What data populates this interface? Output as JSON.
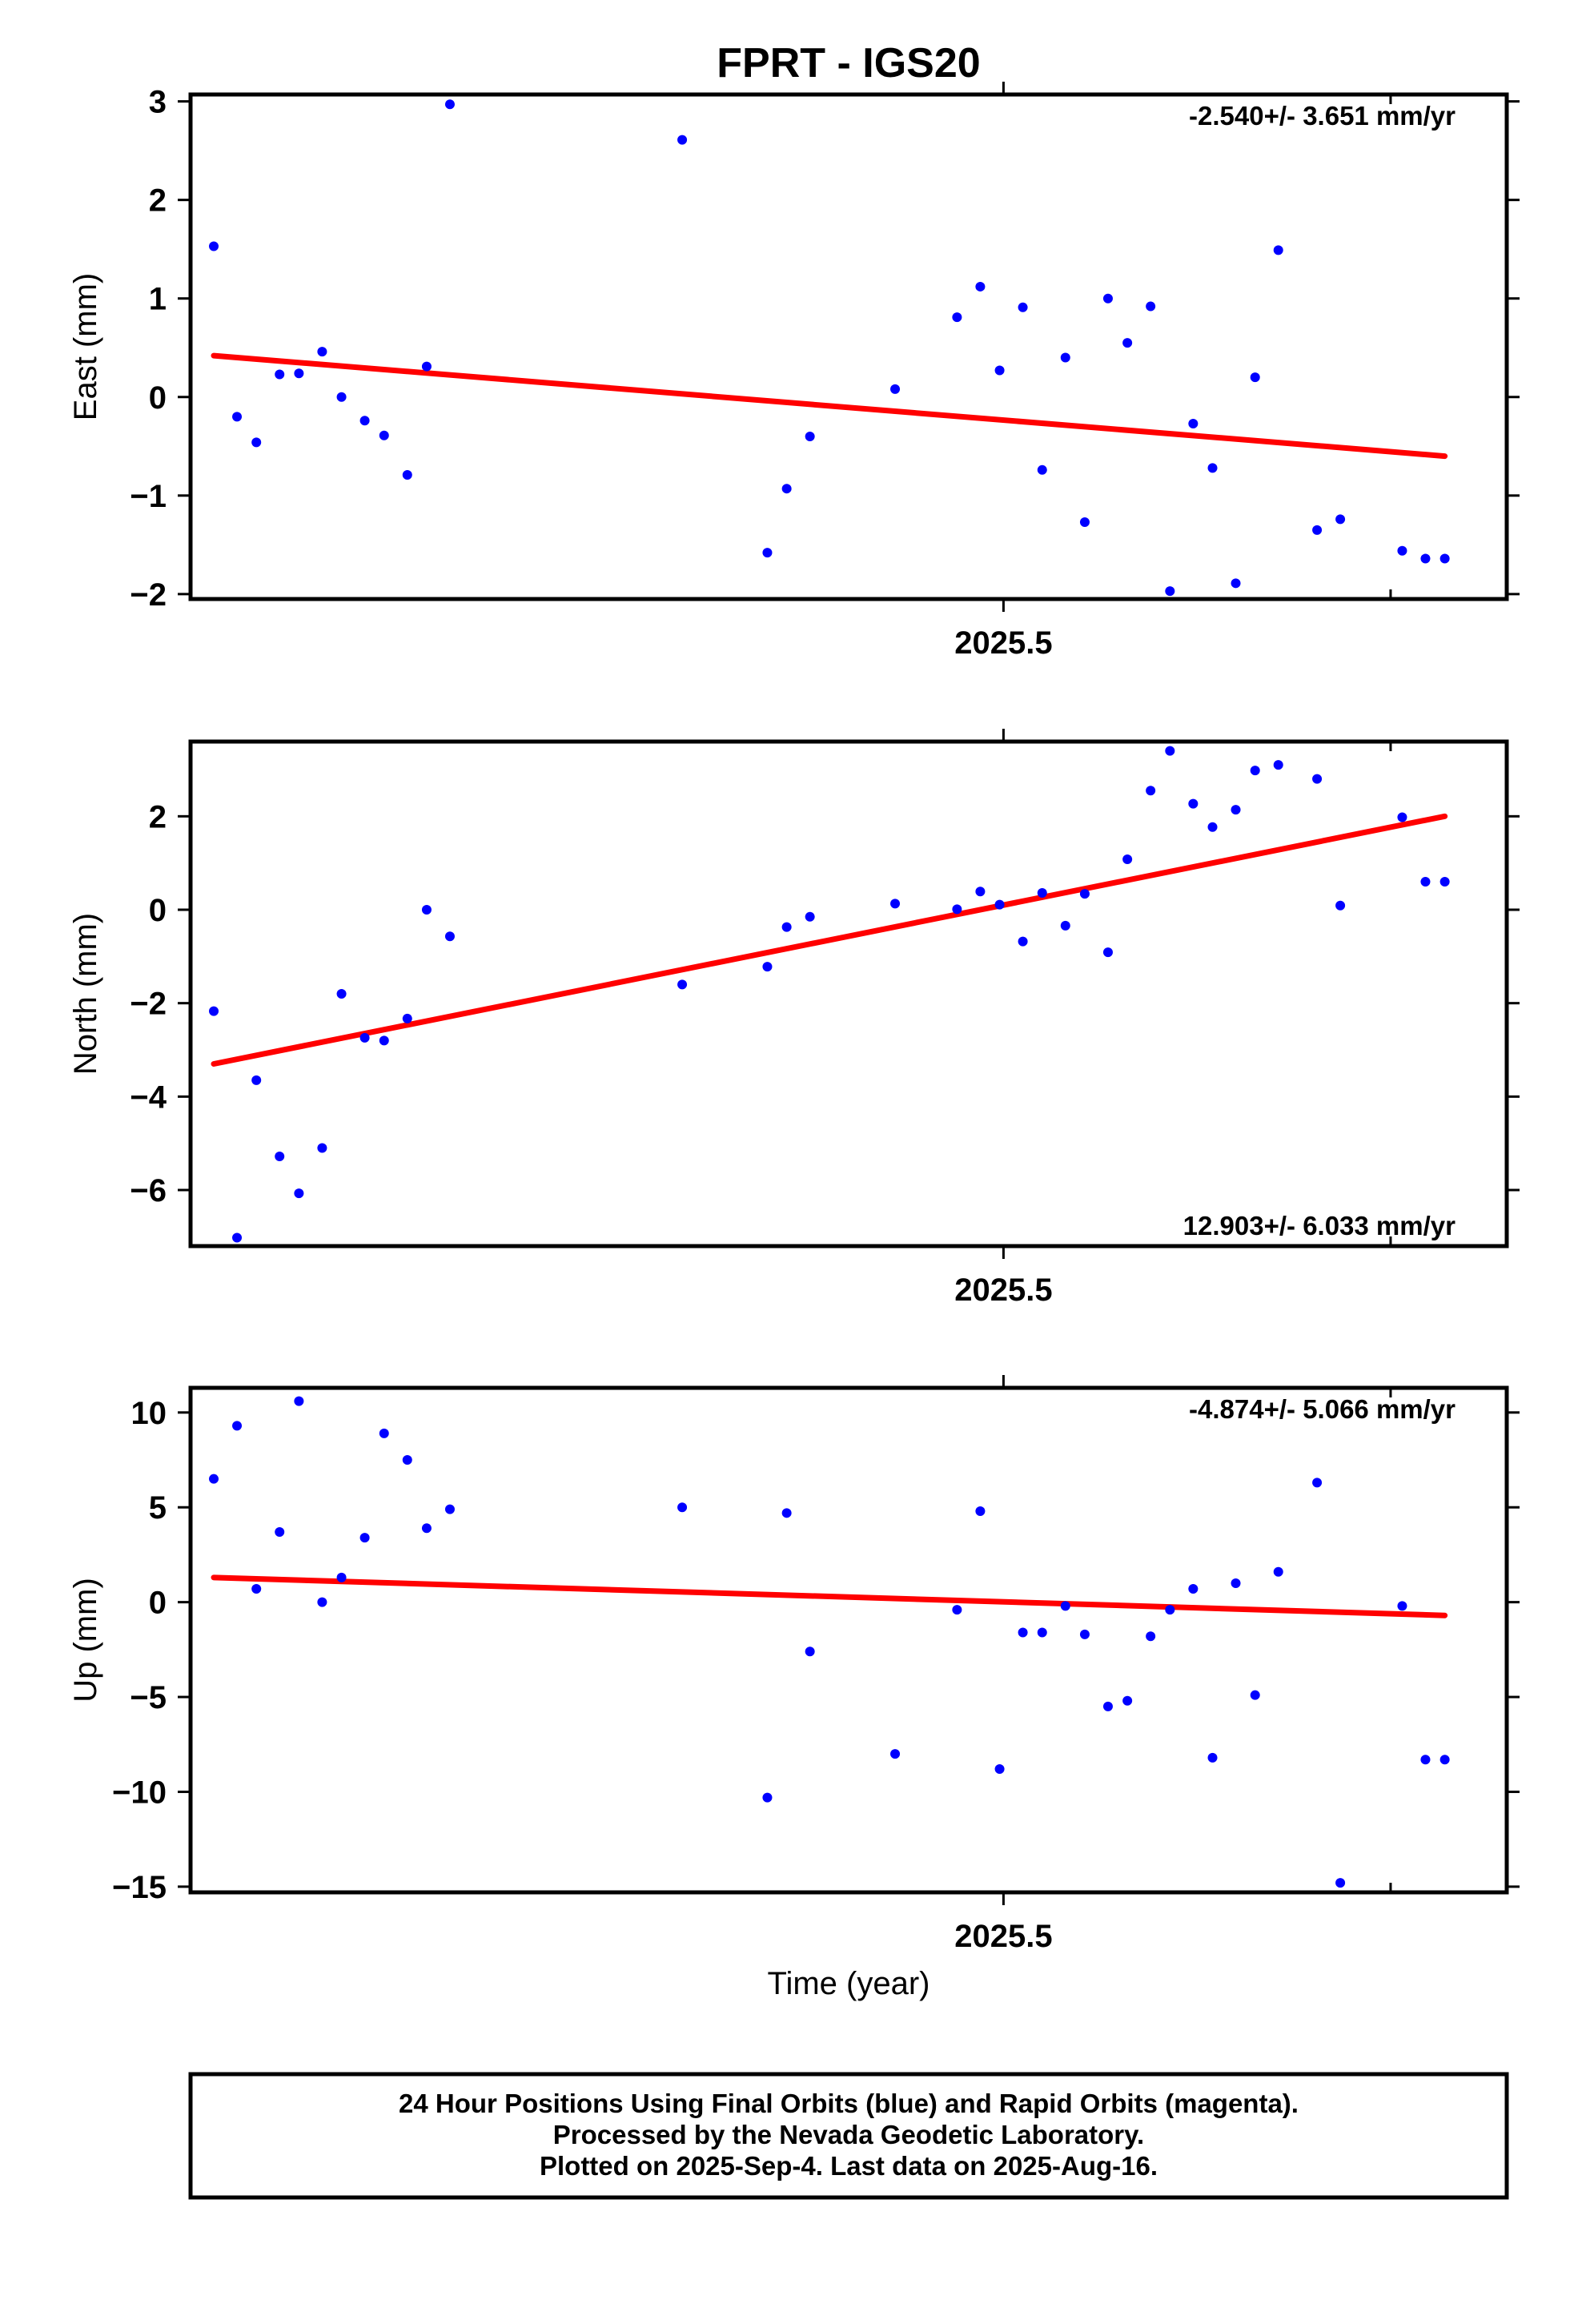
{
  "title": "FPRT - IGS20",
  "xlabel": "Time (year)",
  "footer": {
    "lines": [
      "24 Hour Positions Using Final Orbits (blue) and Rapid Orbits (magenta).",
      "Processed by the Nevada Geodetic Laboratory.",
      "Plotted on 2025-Sep-4. Last data on 2025-Aug-16."
    ]
  },
  "colors": {
    "points": "#0000ff",
    "trend": "#ff0000",
    "axes": "#000000"
  },
  "chart_data": [
    {
      "type": "scatter",
      "name": "east",
      "ylabel": "East (mm)",
      "rate_label": "-2.540+/- 3.651 mm/yr",
      "rate_position": "top-right",
      "xlim": [
        2025.29,
        2025.63
      ],
      "ylim": [
        -2.05,
        3.07
      ],
      "xticks": [
        2025.5
      ],
      "xtick_labels": [
        "2025.5"
      ],
      "yticks": [
        -2,
        -1,
        0,
        1,
        2,
        3
      ],
      "ytick_labels": [
        "−2",
        "−1",
        "0",
        "1",
        "2",
        "3"
      ],
      "grid": false,
      "x": [
        2025.296,
        2025.302,
        2025.307,
        2025.313,
        2025.318,
        2025.324,
        2025.329,
        2025.335,
        2025.34,
        2025.346,
        2025.351,
        2025.357,
        2025.417,
        2025.439,
        2025.444,
        2025.45,
        2025.472,
        2025.488,
        2025.494,
        2025.499,
        2025.505,
        2025.51,
        2025.516,
        2025.521,
        2025.527,
        2025.532,
        2025.538,
        2025.543,
        2025.549,
        2025.554,
        2025.56,
        2025.565,
        2025.571,
        2025.581,
        2025.587,
        2025.603,
        2025.609,
        2025.614
      ],
      "y": [
        1.53,
        -0.2,
        -0.46,
        0.23,
        0.24,
        0.46,
        0.0,
        -0.24,
        -0.39,
        -0.79,
        0.31,
        2.97,
        2.61,
        -1.58,
        -0.93,
        -0.4,
        0.08,
        0.81,
        1.12,
        0.27,
        0.91,
        -0.74,
        0.4,
        -1.27,
        1.0,
        0.55,
        0.92,
        -1.97,
        -0.27,
        -0.72,
        -1.89,
        0.2,
        1.49,
        -1.35,
        -1.24,
        -1.56,
        -1.64,
        -1.64
      ],
      "trend": {
        "x": [
          2025.296,
          2025.614
        ],
        "y": [
          0.42,
          -0.6
        ]
      }
    },
    {
      "type": "scatter",
      "name": "north",
      "ylabel": "North (mm)",
      "rate_label": "12.903+/- 6.033 mm/yr",
      "rate_position": "bottom-right",
      "xlim": [
        2025.29,
        2025.63
      ],
      "ylim": [
        -7.2,
        3.6
      ],
      "xticks": [
        2025.5
      ],
      "xtick_labels": [
        "2025.5"
      ],
      "yticks": [
        -6,
        -4,
        -2,
        0,
        2
      ],
      "ytick_labels": [
        "−6",
        "−4",
        "−2",
        "0",
        "2"
      ],
      "grid": false,
      "x": [
        2025.296,
        2025.302,
        2025.307,
        2025.313,
        2025.318,
        2025.324,
        2025.329,
        2025.335,
        2025.34,
        2025.346,
        2025.351,
        2025.357,
        2025.417,
        2025.439,
        2025.444,
        2025.45,
        2025.472,
        2025.488,
        2025.494,
        2025.499,
        2025.505,
        2025.51,
        2025.516,
        2025.521,
        2025.527,
        2025.532,
        2025.538,
        2025.543,
        2025.549,
        2025.554,
        2025.56,
        2025.565,
        2025.571,
        2025.581,
        2025.587,
        2025.603,
        2025.609,
        2025.614
      ],
      "y": [
        -2.17,
        -7.02,
        -3.65,
        -5.28,
        -6.07,
        -5.1,
        -1.8,
        -2.74,
        -2.8,
        -2.33,
        0.0,
        -0.57,
        -1.6,
        -1.22,
        -0.37,
        -0.15,
        0.13,
        0.01,
        0.39,
        0.11,
        -0.68,
        0.36,
        -0.34,
        0.34,
        -0.91,
        1.08,
        2.55,
        3.4,
        2.27,
        1.77,
        2.14,
        2.98,
        3.1,
        2.8,
        0.09,
        1.98,
        0.6,
        0.6
      ],
      "trend": {
        "x": [
          2025.296,
          2025.614
        ],
        "y": [
          -3.3,
          2.0
        ]
      }
    },
    {
      "type": "scatter",
      "name": "up",
      "ylabel": "Up (mm)",
      "rate_label": "-4.874+/- 5.066 mm/yr",
      "rate_position": "top-right",
      "xlim": [
        2025.29,
        2025.63
      ],
      "ylim": [
        -15.3,
        11.3
      ],
      "xticks": [
        2025.5
      ],
      "xtick_labels": [
        "2025.5"
      ],
      "yticks": [
        -15,
        -10,
        -5,
        0,
        5,
        10
      ],
      "ytick_labels": [
        "−15",
        "−10",
        "−5",
        "0",
        "5",
        "10"
      ],
      "grid": false,
      "x": [
        2025.296,
        2025.302,
        2025.307,
        2025.313,
        2025.318,
        2025.324,
        2025.329,
        2025.335,
        2025.34,
        2025.346,
        2025.351,
        2025.357,
        2025.417,
        2025.439,
        2025.444,
        2025.45,
        2025.472,
        2025.488,
        2025.494,
        2025.499,
        2025.505,
        2025.51,
        2025.516,
        2025.521,
        2025.527,
        2025.532,
        2025.538,
        2025.543,
        2025.549,
        2025.554,
        2025.56,
        2025.565,
        2025.571,
        2025.581,
        2025.587,
        2025.603,
        2025.609,
        2025.614
      ],
      "y": [
        6.5,
        9.3,
        0.7,
        3.7,
        10.6,
        0.0,
        1.3,
        3.4,
        8.9,
        7.5,
        3.9,
        4.9,
        5.0,
        -10.3,
        4.7,
        -2.6,
        -8.0,
        -0.4,
        4.8,
        -8.8,
        -1.6,
        -1.6,
        -0.2,
        -1.7,
        -5.5,
        -5.2,
        -1.8,
        -0.4,
        0.7,
        -8.2,
        1.0,
        -4.9,
        1.6,
        6.3,
        -14.8,
        -0.2,
        -8.3,
        -8.3
      ],
      "trend": {
        "x": [
          2025.296,
          2025.614
        ],
        "y": [
          1.3,
          -0.7
        ]
      }
    }
  ]
}
